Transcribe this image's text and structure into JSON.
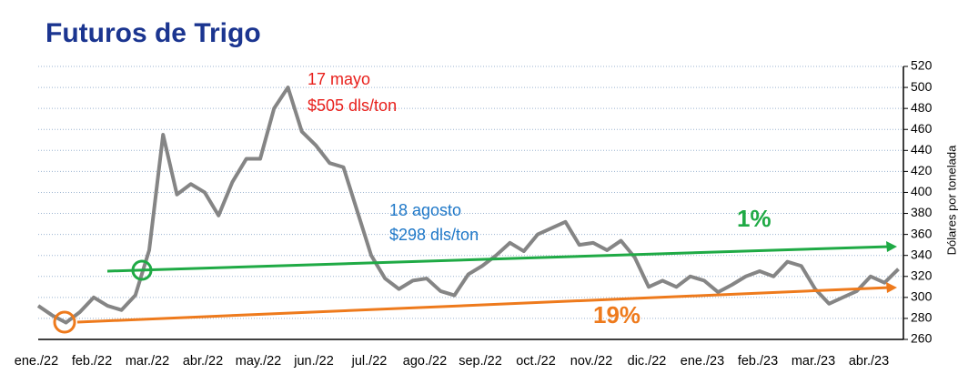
{
  "chart_data": {
    "type": "line",
    "title": "Futuros de Trigo",
    "y_label": "Dólares por tonelada",
    "categories": [
      "ene./22",
      null,
      null,
      null,
      "feb./22",
      null,
      null,
      null,
      "mar./22",
      null,
      null,
      null,
      "abr./22",
      null,
      null,
      null,
      "may./22",
      null,
      null,
      null,
      "jun./22",
      null,
      null,
      null,
      "jul./22",
      null,
      null,
      null,
      "ago./22",
      null,
      null,
      null,
      "sep./22",
      null,
      null,
      null,
      "oct./22",
      null,
      null,
      null,
      "nov./22",
      null,
      null,
      null,
      "dic./22",
      null,
      null,
      null,
      "ene./23",
      null,
      null,
      null,
      "feb./23",
      null,
      null,
      null,
      "mar./23",
      null,
      null,
      null,
      "abr./23",
      null,
      null
    ],
    "series": [
      {
        "name": "Futuros de Trigo",
        "color": "#858585",
        "values": [
          292,
          283,
          276,
          286,
          300,
          292,
          288,
          302,
          345,
          455,
          398,
          408,
          400,
          378,
          410,
          432,
          432,
          480,
          500,
          458,
          445,
          428,
          424,
          382,
          340,
          318,
          308,
          316,
          318,
          306,
          302,
          322,
          330,
          340,
          352,
          344,
          360,
          366,
          372,
          350,
          352,
          345,
          354,
          338,
          310,
          316,
          310,
          320,
          316,
          305,
          312,
          320,
          325,
          320,
          334,
          330,
          308,
          294,
          300,
          306,
          320,
          314,
          327
        ]
      }
    ],
    "ylim": [
      260,
      520
    ],
    "yticks": [
      260,
      280,
      300,
      320,
      340,
      360,
      380,
      400,
      420,
      440,
      460,
      480,
      500,
      520
    ],
    "grid": true,
    "annotations": [
      {
        "text": "17 mayo",
        "color": "#e8201c"
      },
      {
        "text": "$505 dls/ton",
        "color": "#e8201c"
      },
      {
        "text": "18 agosto",
        "color": "#1f78c8"
      },
      {
        "text": "$298 dls/ton",
        "color": "#1f78c8"
      },
      {
        "text": "1%",
        "color": "#1faa45"
      },
      {
        "text": "19%",
        "color": "#ee7a1c"
      }
    ]
  }
}
